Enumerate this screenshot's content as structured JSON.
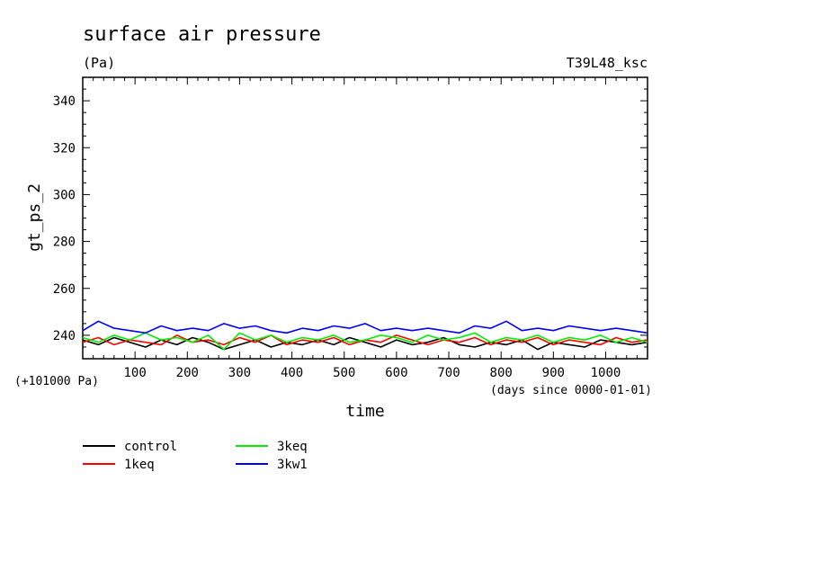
{
  "chart_data": {
    "type": "line",
    "title": "surface air pressure",
    "units": "(Pa)",
    "experiment_label": "T39L48_ksc",
    "ylabel": "gt_ps_2",
    "xlabel": "time",
    "y_offset_note": "(+101000 Pa)",
    "x_unit_note": "(days since 0000-01-01)",
    "xlim": [
      0,
      1080
    ],
    "ylim": [
      230,
      350
    ],
    "x_ticks": [
      100,
      200,
      300,
      400,
      500,
      600,
      700,
      800,
      900,
      1000
    ],
    "y_ticks": [
      240,
      260,
      280,
      300,
      320,
      340
    ],
    "x_tick_labels": [
      "100",
      "200",
      "300",
      "400",
      "500",
      "600",
      "700",
      "800",
      "900",
      "1000"
    ],
    "y_tick_labels": [
      "240",
      "260",
      "280",
      "300",
      "320",
      "340"
    ],
    "grid": false,
    "legend_position": "bottom-left, below plot",
    "series": [
      {
        "name": "control",
        "color": "#000000",
        "x": [
          0,
          30,
          60,
          90,
          120,
          150,
          180,
          210,
          240,
          270,
          300,
          330,
          360,
          390,
          420,
          450,
          480,
          510,
          540,
          570,
          600,
          630,
          660,
          690,
          720,
          750,
          780,
          810,
          840,
          870,
          900,
          930,
          960,
          990,
          1020,
          1050,
          1080
        ],
        "values": [
          238,
          236,
          239,
          237,
          235,
          238,
          236,
          239,
          237,
          234,
          236,
          238,
          235,
          237,
          236,
          238,
          236,
          239,
          237,
          235,
          238,
          236,
          237,
          239,
          236,
          235,
          237,
          236,
          238,
          234,
          237,
          236,
          235,
          238,
          237,
          236,
          237
        ]
      },
      {
        "name": "1keq",
        "color": "#ff0000",
        "x": [
          0,
          30,
          60,
          90,
          120,
          150,
          180,
          210,
          240,
          270,
          300,
          330,
          360,
          390,
          420,
          450,
          480,
          510,
          540,
          570,
          600,
          630,
          660,
          690,
          720,
          750,
          780,
          810,
          840,
          870,
          900,
          930,
          960,
          990,
          1020,
          1050,
          1080
        ],
        "values": [
          237,
          239,
          236,
          238,
          237,
          236,
          240,
          237,
          238,
          236,
          239,
          237,
          240,
          236,
          238,
          237,
          239,
          236,
          238,
          237,
          240,
          238,
          236,
          238,
          237,
          239,
          236,
          238,
          237,
          239,
          236,
          238,
          237,
          236,
          239,
          237,
          238
        ]
      },
      {
        "name": "3keq",
        "color": "#00ee00",
        "x": [
          0,
          30,
          60,
          90,
          120,
          150,
          180,
          210,
          240,
          270,
          300,
          330,
          360,
          390,
          420,
          450,
          480,
          510,
          540,
          570,
          600,
          630,
          660,
          690,
          720,
          750,
          780,
          810,
          840,
          870,
          900,
          930,
          960,
          990,
          1020,
          1050,
          1080
        ],
        "values": [
          239,
          237,
          240,
          238,
          241,
          238,
          239,
          237,
          240,
          234,
          241,
          238,
          240,
          237,
          239,
          238,
          240,
          237,
          238,
          240,
          239,
          237,
          240,
          238,
          239,
          241,
          237,
          239,
          238,
          240,
          237,
          239,
          238,
          240,
          237,
          239,
          237
        ]
      },
      {
        "name": "3kw1",
        "color": "#0000ff",
        "x": [
          0,
          30,
          60,
          90,
          120,
          150,
          180,
          210,
          240,
          270,
          300,
          330,
          360,
          390,
          420,
          450,
          480,
          510,
          540,
          570,
          600,
          630,
          660,
          690,
          720,
          750,
          780,
          810,
          840,
          870,
          900,
          930,
          960,
          990,
          1020,
          1050,
          1080
        ],
        "values": [
          242,
          246,
          243,
          242,
          241,
          244,
          242,
          243,
          242,
          245,
          243,
          244,
          242,
          241,
          243,
          242,
          244,
          243,
          245,
          242,
          243,
          242,
          243,
          242,
          241,
          244,
          243,
          246,
          242,
          243,
          242,
          244,
          243,
          242,
          243,
          242,
          241
        ]
      }
    ]
  }
}
